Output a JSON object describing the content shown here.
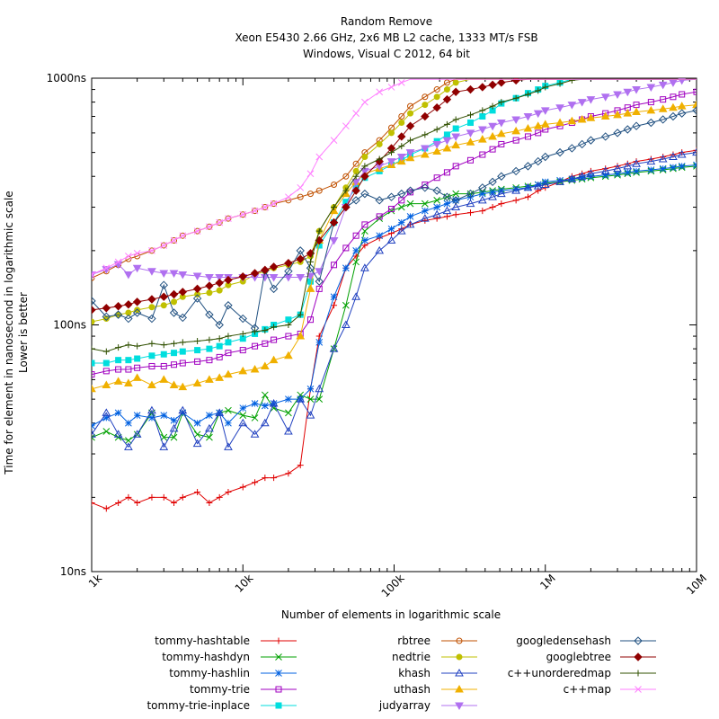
{
  "chart_data": {
    "type": "line",
    "title": [
      "Random Remove",
      "Xeon E5430 2.66 GHz, 2x6 MB L2 cache, 1333 MT/s FSB",
      "Windows, Visual C 2012, 64 bit"
    ],
    "xlabel": "Number of elements in logarithmic scale",
    "ylabel": [
      "Time for element in nanosecond in logarithmic scale",
      "Lower is better"
    ],
    "x_scale": "log",
    "y_scale": "log",
    "xlim": [
      1000,
      10000000
    ],
    "ylim": [
      10,
      1000
    ],
    "x_ticks": [
      {
        "value": 1000,
        "label": "1k"
      },
      {
        "value": 10000,
        "label": "10k"
      },
      {
        "value": 100000,
        "label": "100k"
      },
      {
        "value": 1000000,
        "label": "1M"
      },
      {
        "value": 10000000,
        "label": "10M"
      }
    ],
    "y_ticks": [
      {
        "value": 10,
        "label": "10ns"
      },
      {
        "value": 100,
        "label": "100ns"
      },
      {
        "value": 1000,
        "label": "1000ns"
      }
    ],
    "x": [
      1000,
      1250,
      1500,
      1750,
      2000,
      2500,
      3000,
      3500,
      4000,
      5000,
      6000,
      7000,
      8000,
      10000,
      12000,
      14000,
      16000,
      20000,
      24000,
      28000,
      32000,
      40000,
      48000,
      56000,
      64000,
      80000,
      96000,
      112000,
      128000,
      160000,
      192000,
      224000,
      256000,
      320000,
      384000,
      448000,
      512000,
      640000,
      768000,
      896000,
      1000000,
      1250000,
      1500000,
      1750000,
      2000000,
      2500000,
      3000000,
      3500000,
      4000000,
      5000000,
      6000000,
      7000000,
      8000000,
      10000000
    ],
    "legend": {
      "placement": "bottom",
      "columns": 3
    },
    "series": [
      {
        "name": "tommy-hashtable",
        "color": "#e00000",
        "marker": "plus",
        "values": [
          19,
          18,
          19,
          20,
          19,
          20,
          20,
          19,
          20,
          21,
          19,
          20,
          21,
          22,
          23,
          24,
          24,
          25,
          27,
          55,
          90,
          120,
          170,
          190,
          210,
          225,
          235,
          245,
          255,
          265,
          270,
          275,
          280,
          285,
          290,
          300,
          310,
          320,
          330,
          350,
          360,
          380,
          400,
          410,
          420,
          430,
          440,
          450,
          460,
          470,
          480,
          490,
          500,
          510
        ]
      },
      {
        "name": "tommy-hashdyn",
        "color": "#00a000",
        "marker": "cross",
        "values": [
          35,
          37,
          35,
          34,
          36,
          44,
          35,
          35,
          44,
          36,
          35,
          44,
          45,
          43,
          42,
          52,
          46,
          44,
          52,
          50,
          50,
          80,
          120,
          180,
          240,
          270,
          290,
          300,
          310,
          310,
          320,
          330,
          340,
          340,
          345,
          350,
          355,
          360,
          365,
          370,
          375,
          380,
          385,
          390,
          395,
          400,
          405,
          410,
          415,
          420,
          425,
          430,
          435,
          440
        ]
      },
      {
        "name": "tommy-hashlin",
        "color": "#0060e0",
        "marker": "star",
        "values": [
          39,
          42,
          44,
          40,
          43,
          42,
          43,
          41,
          44,
          40,
          43,
          44,
          40,
          46,
          48,
          47,
          48,
          50,
          50,
          55,
          85,
          130,
          170,
          200,
          220,
          230,
          245,
          260,
          275,
          290,
          300,
          310,
          320,
          330,
          340,
          345,
          350,
          355,
          360,
          370,
          380,
          385,
          390,
          395,
          400,
          405,
          410,
          415,
          420,
          425,
          430,
          435,
          440,
          445
        ]
      },
      {
        "name": "tommy-trie",
        "color": "#a000c0",
        "marker": "square",
        "values": [
          63,
          65,
          66,
          66,
          67,
          68,
          68,
          69,
          70,
          71,
          72,
          74,
          77,
          79,
          82,
          84,
          87,
          90,
          92,
          105,
          140,
          175,
          205,
          230,
          255,
          275,
          295,
          320,
          345,
          370,
          395,
          415,
          440,
          465,
          490,
          515,
          540,
          560,
          580,
          600,
          620,
          640,
          660,
          680,
          700,
          720,
          740,
          760,
          780,
          800,
          820,
          840,
          860,
          880
        ]
      },
      {
        "name": "tommy-trie-inplace",
        "color": "#00dede",
        "marker": "square-filled",
        "values": [
          70,
          70,
          72,
          72,
          73,
          75,
          76,
          77,
          78,
          79,
          80,
          82,
          85,
          88,
          92,
          96,
          100,
          105,
          110,
          150,
          210,
          260,
          315,
          360,
          395,
          420,
          445,
          465,
          490,
          520,
          555,
          590,
          625,
          660,
          700,
          740,
          790,
          830,
          870,
          900,
          930,
          960,
          990,
          1000,
          1000,
          1000,
          1000,
          1000,
          1000,
          1000,
          1000,
          1000,
          1000,
          1000
        ]
      },
      {
        "name": "rbtree",
        "color": "#c05000",
        "marker": "circle",
        "values": [
          155,
          165,
          175,
          185,
          190,
          200,
          210,
          220,
          230,
          240,
          250,
          260,
          270,
          280,
          290,
          300,
          310,
          320,
          330,
          340,
          350,
          370,
          400,
          450,
          500,
          560,
          630,
          700,
          770,
          840,
          900,
          960,
          1000,
          1000,
          1000,
          1000,
          1000,
          1000,
          1000,
          1000,
          1000,
          1000,
          1000,
          1000,
          1000,
          1000,
          1000,
          1000,
          1000,
          1000,
          1000,
          1000,
          1000,
          1000
        ]
      },
      {
        "name": "nedtrie",
        "color": "#c0c000",
        "marker": "circle-filled",
        "values": [
          103,
          106,
          110,
          112,
          115,
          118,
          120,
          124,
          130,
          133,
          135,
          138,
          145,
          150,
          160,
          165,
          170,
          175,
          180,
          190,
          240,
          300,
          360,
          420,
          480,
          540,
          600,
          660,
          720,
          780,
          840,
          900,
          960,
          1000,
          1000,
          1000,
          1000,
          1000,
          1000,
          1000,
          1000,
          1000,
          1000,
          1000,
          1000,
          1000,
          1000,
          1000,
          1000,
          1000,
          1000,
          1000,
          1000,
          1000
        ]
      },
      {
        "name": "khash",
        "color": "#2040c0",
        "marker": "triangle",
        "values": [
          36,
          44,
          36,
          32,
          36,
          45,
          32,
          38,
          45,
          33,
          38,
          44,
          32,
          40,
          36,
          40,
          48,
          37,
          50,
          43,
          55,
          80,
          100,
          130,
          170,
          200,
          220,
          240,
          255,
          270,
          280,
          290,
          300,
          310,
          320,
          330,
          340,
          350,
          360,
          365,
          370,
          380,
          390,
          400,
          410,
          420,
          430,
          440,
          450,
          460,
          470,
          480,
          490,
          500
        ]
      },
      {
        "name": "uthash",
        "color": "#f0b000",
        "marker": "triangle-filled",
        "values": [
          55,
          57,
          59,
          58,
          61,
          57,
          60,
          57,
          56,
          58,
          60,
          61,
          63,
          65,
          66,
          68,
          72,
          75,
          90,
          140,
          220,
          290,
          340,
          380,
          410,
          430,
          445,
          460,
          475,
          490,
          505,
          520,
          535,
          550,
          565,
          580,
          595,
          610,
          625,
          640,
          650,
          660,
          670,
          680,
          690,
          700,
          710,
          720,
          730,
          740,
          750,
          760,
          770,
          780
        ]
      },
      {
        "name": "judyarray",
        "color": "#b070f0",
        "marker": "triangle-down",
        "values": [
          160,
          168,
          176,
          160,
          170,
          165,
          162,
          162,
          160,
          158,
          156,
          156,
          156,
          156,
          156,
          156,
          156,
          156,
          156,
          158,
          165,
          220,
          300,
          380,
          420,
          440,
          460,
          480,
          500,
          520,
          540,
          560,
          580,
          600,
          620,
          640,
          660,
          680,
          700,
          720,
          740,
          760,
          780,
          800,
          820,
          840,
          860,
          880,
          900,
          920,
          940,
          960,
          980,
          1000
        ]
      },
      {
        "name": "googledensehash",
        "color": "#205080",
        "marker": "diamond",
        "values": [
          125,
          108,
          110,
          106,
          112,
          106,
          145,
          112,
          107,
          128,
          110,
          100,
          120,
          106,
          97,
          166,
          140,
          165,
          200,
          170,
          150,
          260,
          300,
          320,
          340,
          320,
          330,
          340,
          350,
          360,
          350,
          330,
          320,
          340,
          360,
          380,
          400,
          420,
          440,
          460,
          480,
          500,
          520,
          540,
          560,
          580,
          600,
          620,
          640,
          660,
          680,
          700,
          720,
          740
        ]
      },
      {
        "name": "googlebtree",
        "color": "#900000",
        "marker": "diamond-filled",
        "values": [
          115,
          117,
          119,
          121,
          124,
          127,
          130,
          133,
          136,
          140,
          144,
          148,
          152,
          157,
          162,
          167,
          172,
          178,
          185,
          195,
          220,
          260,
          300,
          350,
          400,
          460,
          520,
          580,
          640,
          700,
          760,
          820,
          880,
          900,
          920,
          940,
          960,
          980,
          1000,
          1000,
          1000,
          1000,
          1000,
          1000,
          1000,
          1000,
          1000,
          1000,
          1000,
          1000,
          1000,
          1000,
          1000,
          1000
        ]
      },
      {
        "name": "c++unorderedmap",
        "color": "#305000",
        "marker": "plus",
        "values": [
          80,
          78,
          81,
          83,
          82,
          84,
          83,
          84,
          85,
          86,
          87,
          88,
          90,
          92,
          94,
          95,
          98,
          100,
          110,
          180,
          240,
          300,
          350,
          400,
          440,
          470,
          500,
          530,
          560,
          590,
          620,
          650,
          680,
          710,
          740,
          770,
          800,
          830,
          860,
          890,
          920,
          950,
          980,
          1000,
          1000,
          1000,
          1000,
          1000,
          1000,
          1000,
          1000,
          1000,
          1000,
          1000
        ]
      },
      {
        "name": "c++map",
        "color": "#ff80ff",
        "marker": "cross",
        "values": [
          160,
          170,
          180,
          190,
          195,
          200,
          210,
          220,
          230,
          240,
          250,
          260,
          270,
          280,
          290,
          300,
          310,
          330,
          360,
          410,
          480,
          560,
          640,
          720,
          800,
          880,
          920,
          960,
          1000,
          1000,
          1000,
          1000,
          1000,
          1000,
          1000,
          1000,
          1000,
          1000,
          1000,
          1000,
          1000,
          1000,
          1000,
          1000,
          1000,
          1000,
          1000,
          1000,
          1000,
          1000,
          1000,
          1000,
          1000,
          1000
        ]
      }
    ]
  }
}
